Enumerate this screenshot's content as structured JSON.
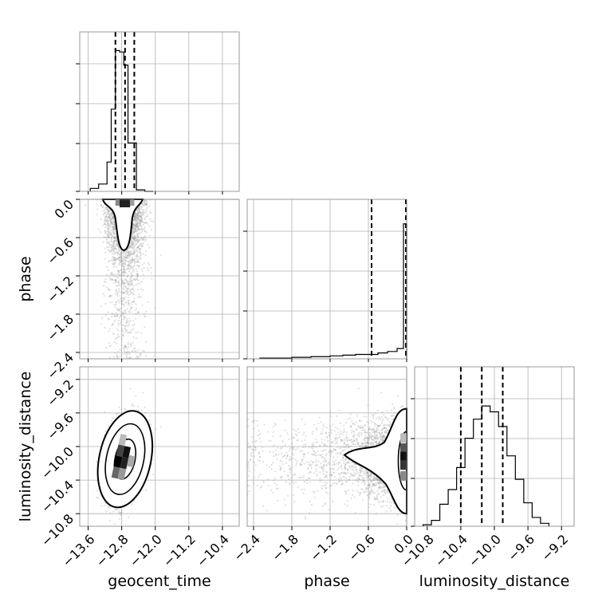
{
  "chart_data": {
    "type": "corner",
    "parameters": [
      "geocent_time",
      "phase",
      "luminosity_distance"
    ],
    "ranges": {
      "geocent_time": [
        -13.8,
        -10.0
      ],
      "phase": [
        -2.5,
        0.0
      ],
      "luminosity_distance": [
        -10.95,
        -9.05
      ]
    },
    "ticks": {
      "geocent_time": [
        -13.6,
        -12.8,
        -12.0,
        -11.2,
        -10.4
      ],
      "phase": [
        -2.4,
        -1.8,
        -1.2,
        -0.6,
        0.0
      ],
      "luminosity_distance": [
        -10.8,
        -10.4,
        -10.0,
        -9.6,
        -9.2
      ]
    },
    "tick_labels": {
      "geocent_time": [
        "−13.6",
        "−12.8",
        "−12.0",
        "−11.2",
        "−10.4"
      ],
      "phase": [
        "−2.4",
        "−1.8",
        "−1.2",
        "−0.6",
        "0.0"
      ],
      "luminosity_distance": [
        "−10.8",
        "−10.4",
        "−10.0",
        "−9.6",
        "−9.2"
      ]
    },
    "quantiles": {
      "geocent_time": [
        -12.95,
        -12.72,
        -12.5
      ],
      "phase": [
        -0.55,
        -0.01,
        0.0
      ],
      "luminosity_distance": [
        -10.4,
        -10.15,
        -9.9
      ]
    },
    "histograms": {
      "geocent_time": {
        "edges": [
          -13.55,
          -13.35,
          -13.15,
          -13.05,
          -12.95,
          -12.85,
          -12.75,
          -12.65,
          -12.45,
          -12.25,
          -12.05
        ],
        "counts": [
          0.02,
          0.05,
          0.2,
          0.56,
          0.96,
          0.95,
          0.86,
          0.33,
          0.01,
          0.0
        ]
      },
      "phase": {
        "edges": [
          -2.3,
          -1.8,
          -1.5,
          -1.2,
          -1.0,
          -0.8,
          -0.6,
          -0.45,
          -0.3,
          -0.15,
          -0.05,
          0.0
        ],
        "counts": [
          0.005,
          0.01,
          0.015,
          0.02,
          0.025,
          0.03,
          0.03,
          0.04,
          0.05,
          0.07,
          0.92
        ]
      },
      "luminosity_distance": {
        "edges": [
          -10.85,
          -10.75,
          -10.65,
          -10.55,
          -10.45,
          -10.35,
          -10.25,
          -10.15,
          -10.05,
          -9.95,
          -9.85,
          -9.75,
          -9.65,
          -9.55,
          -9.45,
          -9.35
        ],
        "counts": [
          0.01,
          0.04,
          0.15,
          0.25,
          0.4,
          0.6,
          0.73,
          0.82,
          0.78,
          0.68,
          0.48,
          0.32,
          0.16,
          0.06,
          0.02
        ]
      }
    },
    "xlabels": [
      "geocent_time",
      "phase",
      "luminosity_distance"
    ],
    "ylabels": [
      "phase",
      "luminosity_distance"
    ],
    "grid": true
  }
}
